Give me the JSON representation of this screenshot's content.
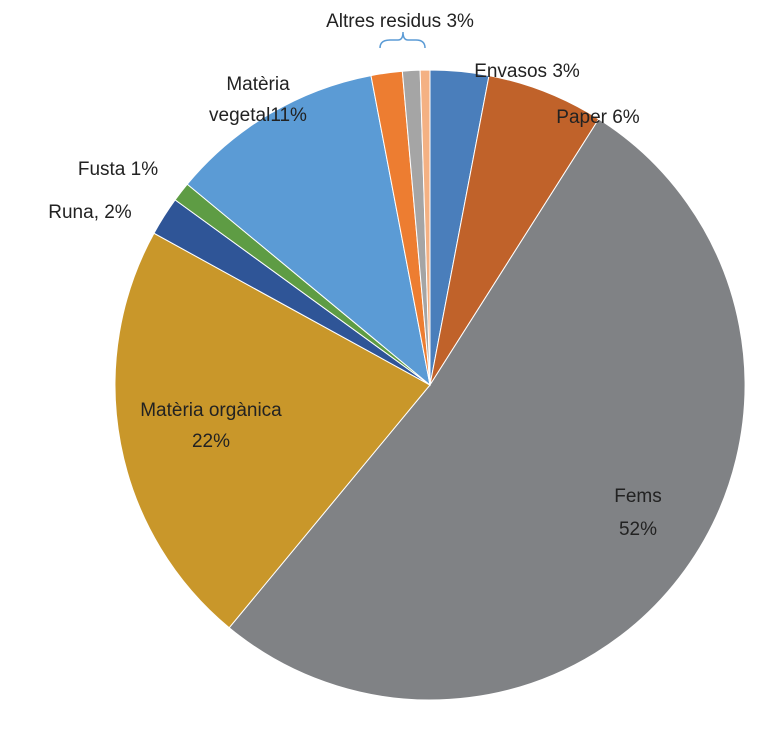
{
  "chart_data": {
    "type": "pie",
    "values": [
      3,
      6,
      52,
      22,
      2,
      1,
      11,
      1.6,
      0.9,
      0.5
    ],
    "value_labels": [
      [
        "Envasos 3%"
      ],
      [
        "Paper 6%"
      ],
      [
        "Fems",
        "52%"
      ],
      [
        "Matèria orgànica",
        "22%"
      ],
      [
        "Runa, 2%"
      ],
      [
        "Fusta 1%"
      ],
      [
        "Matèria",
        "vegetal11%"
      ],
      null,
      null,
      null
    ],
    "colors": [
      "#4a7ebb",
      "#c0622a",
      "#808285",
      "#c9972a",
      "#2f5597",
      "#5e9c44",
      "#5b9bd5",
      "#ed7d31",
      "#a5a5a5",
      "#f4b183"
    ],
    "annotation": "Altres residus 3%"
  }
}
